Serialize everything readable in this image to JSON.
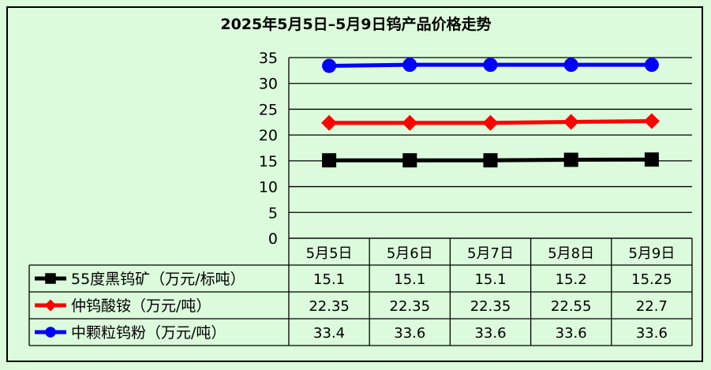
{
  "chart_data": {
    "type": "line",
    "title": "2025年5月5日–5月9日钨产品价格走势",
    "categories": [
      "5月5日",
      "5月6日",
      "5月7日",
      "5月8日",
      "5月9日"
    ],
    "ylim": [
      0,
      35
    ],
    "yticks": [
      0,
      5,
      10,
      15,
      20,
      25,
      30,
      35
    ],
    "grid": true,
    "legend": "data-table",
    "series": [
      {
        "name": "55度黑钨矿（万元/标吨）",
        "values": [
          15.1,
          15.1,
          15.1,
          15.2,
          15.25
        ],
        "labels": [
          "15.1",
          "15.1",
          "15.1",
          "15.2",
          "15.25"
        ],
        "color": "#000000",
        "marker": "square"
      },
      {
        "name": "仲钨酸铵（万元/吨）",
        "values": [
          22.35,
          22.35,
          22.35,
          22.55,
          22.7
        ],
        "labels": [
          "22.35",
          "22.35",
          "22.35",
          "22.55",
          "22.7"
        ],
        "color": "#ff0000",
        "marker": "diamond"
      },
      {
        "name": "中颗粒钨粉（万元/吨）",
        "values": [
          33.4,
          33.6,
          33.6,
          33.6,
          33.6
        ],
        "labels": [
          "33.4",
          "33.6",
          "33.6",
          "33.6",
          "33.6"
        ],
        "color": "#0000ff",
        "marker": "circle"
      }
    ]
  }
}
